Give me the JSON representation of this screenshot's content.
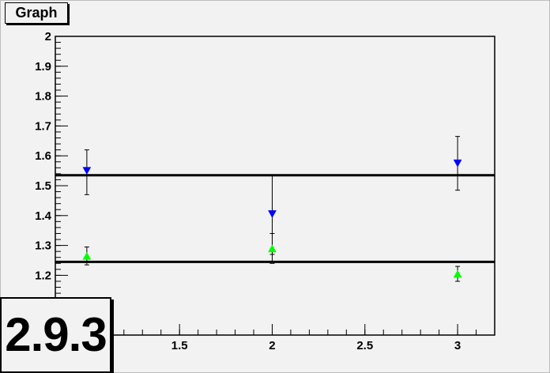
{
  "title": "Graph",
  "version_label": "2.9.3",
  "chart_data": {
    "type": "scatter",
    "title": "Graph",
    "xlabel": "",
    "ylabel": "",
    "xlim": [
      0.83,
      3.2
    ],
    "ylim": [
      1.0,
      2.0
    ],
    "x_ticks": [
      1.5,
      2,
      2.5,
      3
    ],
    "x_tick_labels": [
      "1.5",
      "2",
      "2.5",
      "3"
    ],
    "y_ticks": [
      1.2,
      1.3,
      1.4,
      1.5,
      1.6,
      1.7,
      1.8,
      1.9,
      2
    ],
    "y_tick_labels": [
      "1.2",
      "1.3",
      "1.4",
      "1.5",
      "1.6",
      "1.7",
      "1.8",
      "1.9",
      "2"
    ],
    "grid": false,
    "series": [
      {
        "marker": "triangle-down",
        "color": "#0000ff",
        "x": [
          1,
          2,
          3
        ],
        "y": [
          1.55,
          1.405,
          1.575
        ],
        "err_low": [
          0.08,
          0.135,
          0.09
        ],
        "err_high": [
          0.07,
          0.13,
          0.09
        ]
      },
      {
        "marker": "triangle-up",
        "color": "#00ff00",
        "x": [
          1,
          2,
          3
        ],
        "y": [
          1.265,
          1.29,
          1.205
        ],
        "err_low": [
          0.03,
          0.05,
          0.025
        ],
        "err_high": [
          0.03,
          0.05,
          0.025
        ]
      }
    ],
    "reference_lines": [
      {
        "y": 1.535,
        "color": "#000000"
      },
      {
        "y": 1.245,
        "color": "#000000"
      }
    ]
  }
}
